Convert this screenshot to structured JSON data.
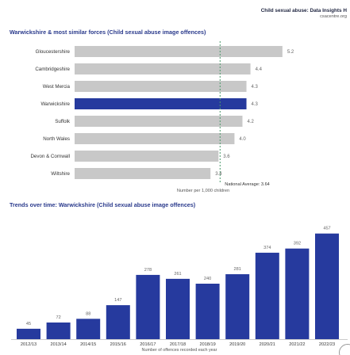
{
  "header": {
    "title": "Child sexual abuse: Data Insights H",
    "site": "csacentre.org"
  },
  "colors": {
    "highlight": "#263a9e",
    "bar": "#c8c8c8",
    "trend_bar": "#263a9e",
    "title": "#2a3a8c"
  },
  "chart_data": [
    {
      "type": "bar",
      "orientation": "horizontal",
      "title": "Warwickshire & most similar forces (Child sexual abuse image offences)",
      "xlabel": "Number per 1,000 children",
      "categories": [
        "Gloucestershire",
        "Cambridgeshire",
        "West Mercia",
        "Warwickshire",
        "Suffolk",
        "North Wales",
        "Devon & Cornwall",
        "Wiltshire"
      ],
      "values": [
        5.2,
        4.4,
        4.3,
        4.3,
        4.2,
        4.0,
        3.6,
        3.4
      ],
      "value_labels": [
        "5.2",
        "4.4",
        "4.3",
        "4.3",
        "4.2",
        "4.0",
        "3.6",
        "3.4"
      ],
      "highlight": "Warwickshire",
      "reference_line": {
        "label": "National Average: 3.64",
        "value": 3.64
      },
      "xlim": [
        0,
        5.6
      ],
      "grid": false
    },
    {
      "type": "bar",
      "title": "Trends over time: Warwickshire (Child sexual abuse image offences)",
      "xlabel": "Number of offences recorded each year",
      "categories": [
        "2012/13",
        "2013/14",
        "2014/15",
        "2015/16",
        "2016/17",
        "2017/18",
        "2018/19",
        "2019/20",
        "2020/21",
        "2021/22",
        "2022/23"
      ],
      "values": [
        45,
        72,
        88,
        147,
        278,
        261,
        240,
        281,
        374,
        392,
        457
      ],
      "ylim": [
        0,
        480
      ],
      "grid": false
    }
  ]
}
